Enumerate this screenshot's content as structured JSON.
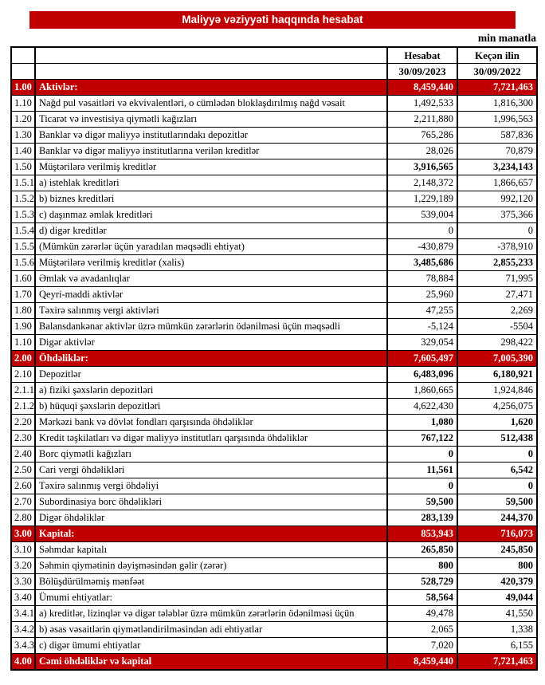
{
  "header": {
    "title": "Maliyyə vəziyyəti haqqında hesabat",
    "units_label": "min manatla",
    "col_current_title": "Hesabat",
    "col_prior_title": "Keçən ilin",
    "col_current_date": "30/09/2023",
    "col_prior_date": "30/09/2022"
  },
  "colors": {
    "accent_red": "#c00000",
    "border": "#000000",
    "banner_text": "#ffffff"
  },
  "table": {
    "rows": [
      {
        "code": "1.00",
        "label": "Aktivlər:",
        "current": "8,459,440",
        "prior": "7,721,463",
        "style": "section"
      },
      {
        "code": "1.10",
        "label": "Nağd pul vəsaitləri və  ekvivalentləri, o cümlədən bloklaşdırılmış nağd vəsait",
        "current": "1,492,533",
        "prior": "1,816,300",
        "style": "normal"
      },
      {
        "code": "1.20",
        "label": "Ticarət və investisiya qiymətli kağızları",
        "current": "2,211,880",
        "prior": "1,996,563",
        "style": "normal"
      },
      {
        "code": "1.30",
        "label": "Banklar və digər maliyyə institutlarındakı depozitlər",
        "current": "765,286",
        "prior": "587,836",
        "style": "normal"
      },
      {
        "code": "1.40",
        "label": "Banklar və digər maliyyə institutlarına verilən kreditlər",
        "current": "28,026",
        "prior": "70,879",
        "style": "normal"
      },
      {
        "code": "1.50",
        "label": "Müştərilərə verilmiş kreditlər",
        "current": "3,916,565",
        "prior": "3,234,143",
        "style": "subtotal"
      },
      {
        "code": "1.5.1",
        "label": "a) istehlak kreditləri",
        "current": "2,148,372",
        "prior": "1,866,657",
        "style": "normal"
      },
      {
        "code": "1.5.2",
        "label": "b) biznes kreditləri",
        "current": "1,229,189",
        "prior": "992,120",
        "style": "normal"
      },
      {
        "code": "1.5.3",
        "label": "c) daşınmaz əmlak kreditləri",
        "current": "539,004",
        "prior": "375,366",
        "style": "normal"
      },
      {
        "code": "1.5.4",
        "label": "d) digər kreditlər",
        "current": "0",
        "prior": "0",
        "style": "normal"
      },
      {
        "code": "1.5.5",
        "label": "(Mümkün zərərlər üçün yaradılan məqsədli ehtiyat)",
        "current": "-430,879",
        "prior": "-378,910",
        "style": "normal"
      },
      {
        "code": "1.5.6",
        "label": "Müştərilərə verilmiş kreditlər (xalis)",
        "current": "3,485,686",
        "prior": "2,855,233",
        "style": "subtotal"
      },
      {
        "code": "1.60",
        "label": "Əmlak və avadanlıqlar",
        "current": "78,884",
        "prior": "71,995",
        "style": "normal"
      },
      {
        "code": "1.70",
        "label": "Qeyri-maddi aktivlər",
        "current": "25,960",
        "prior": "27,471",
        "style": "normal"
      },
      {
        "code": "1.80",
        "label": "Təxirə salınmış vergi aktivləri",
        "current": "47,255",
        "prior": "2,269",
        "style": "normal"
      },
      {
        "code": "1.90",
        "label": "Balansdankənar aktivlər üzrə mümkün zərərlərin ödənilməsi üçün məqsədli",
        "current": "-5,124",
        "prior": "-5504",
        "style": "normal"
      },
      {
        "code": "1.10",
        "label": "Digər aktivlər",
        "current": "329,054",
        "prior": "298,422",
        "style": "normal"
      },
      {
        "code": "2.00",
        "label": "Öhdəliklər:",
        "current": "7,605,497",
        "prior": "7,005,390",
        "style": "section"
      },
      {
        "code": "2.10",
        "label": "Depozitlər",
        "current": "6,483,096",
        "prior": "6,180,921",
        "style": "subtotal"
      },
      {
        "code": "2.1.1",
        "label": "a) fiziki şəxslərin depozitləri",
        "current": "1,860,665",
        "prior": "1,924,846",
        "style": "normal"
      },
      {
        "code": "2.1.2",
        "label": "b) hüquqi şəxslərin depozitləri",
        "current": "4,622,430",
        "prior": "4,256,075",
        "style": "normal"
      },
      {
        "code": "2.20",
        "label": "Mərkəzi bank və dövlət fondları qarşısında öhdəliklər",
        "current": "1,080",
        "prior": "1,620",
        "style": "subtotal"
      },
      {
        "code": "2.30",
        "label": "Kredit təşkilatları və digər maliyyə institutları qarşısında öhdəliklər",
        "current": "767,122",
        "prior": "512,438",
        "style": "subtotal"
      },
      {
        "code": "2.40",
        "label": "Borc qiymətli kağızları",
        "current": "0",
        "prior": "0",
        "style": "subtotal"
      },
      {
        "code": "2.50",
        "label": "Cari vergi öhdəlikləri",
        "current": "11,561",
        "prior": "6,542",
        "style": "subtotal"
      },
      {
        "code": "2.60",
        "label": "Təxirə salınmış vergi öhdəliyi",
        "current": "0",
        "prior": "0",
        "style": "subtotal"
      },
      {
        "code": "2.70",
        "label": "Subordinasiya borc öhdəlikləri",
        "current": "59,500",
        "prior": "59,500",
        "style": "subtotal"
      },
      {
        "code": "2.80",
        "label": "Digər öhdəliklər",
        "current": "283,139",
        "prior": "244,370",
        "style": "subtotal"
      },
      {
        "code": "3.00",
        "label": "Kapital:",
        "current": "853,943",
        "prior": "716,073",
        "style": "section"
      },
      {
        "code": "3.10",
        "label": "Səhmdar kapitalı",
        "current": "265,850",
        "prior": "245,850",
        "style": "subtotal"
      },
      {
        "code": "3.20",
        "label": "Səhmin qiymətinin dəyişməsindən gəlir (zərər)",
        "current": "800",
        "prior": "800",
        "style": "subtotal"
      },
      {
        "code": "3.30",
        "label": "Bölüşdürülməmiş mənfəət",
        "current": "528,729",
        "prior": "420,379",
        "style": "subtotal"
      },
      {
        "code": "3.40",
        "label": "Ümumi ehtiyatlar:",
        "current": "58,564",
        "prior": "49,044",
        "style": "subtotal"
      },
      {
        "code": "3.4.1",
        "label": "a) kreditlər, lizinqlər və digər tələblər üzrə mümkün zərərlərin ödənilməsi üçün",
        "current": "49,478",
        "prior": "41,550",
        "style": "normal"
      },
      {
        "code": "3.4.2",
        "label": "b) əsas vəsaitlərin qiymətləndirilməsindən adi ehtiyatlar",
        "current": "2,065",
        "prior": "1,338",
        "style": "normal"
      },
      {
        "code": "3.4.3",
        "label": "c) digər ümumi ehtiyatlar",
        "current": "7,020",
        "prior": "6,155",
        "style": "normal"
      },
      {
        "code": "4.00",
        "label": "Cəmi öhdəliklər və kapital",
        "current": "8,459,440",
        "prior": "7,721,463",
        "style": "section"
      }
    ]
  }
}
